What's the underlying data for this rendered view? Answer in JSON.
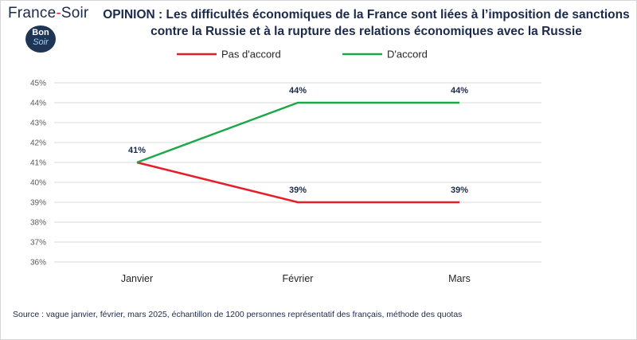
{
  "brand": {
    "name_left": "France",
    "name_dash": "-",
    "name_right": "Soir",
    "badge_line1": "Bon",
    "badge_line2": "Soir"
  },
  "source_note": "Source : vague janvier, février, mars 2025, échantillon de 1200 personnes représentatif des français, méthode des quotas",
  "chart_data": {
    "type": "line",
    "title": "OPINION : Les difficultés économiques de la France sont liées à l’imposition de sanctions contre la Russie et à la rupture des relations économiques avec la Russie",
    "categories": [
      "Janvier",
      "Février",
      "Mars"
    ],
    "series": [
      {
        "name": "Pas d'accord",
        "color": "#e3202a",
        "values": [
          41,
          39,
          39
        ],
        "labels": [
          "41%",
          "39%",
          "39%"
        ]
      },
      {
        "name": "D'accord",
        "color": "#1aa84a",
        "values": [
          41,
          44,
          44
        ],
        "labels": [
          "",
          "44%",
          "44%"
        ]
      }
    ],
    "ylim": [
      36,
      45
    ],
    "yticks": [
      "36%",
      "37%",
      "38%",
      "39%",
      "40%",
      "41%",
      "42%",
      "43%",
      "44%",
      "45%"
    ],
    "xlabel": "",
    "ylabel": "",
    "grid": true,
    "legend": "top"
  }
}
